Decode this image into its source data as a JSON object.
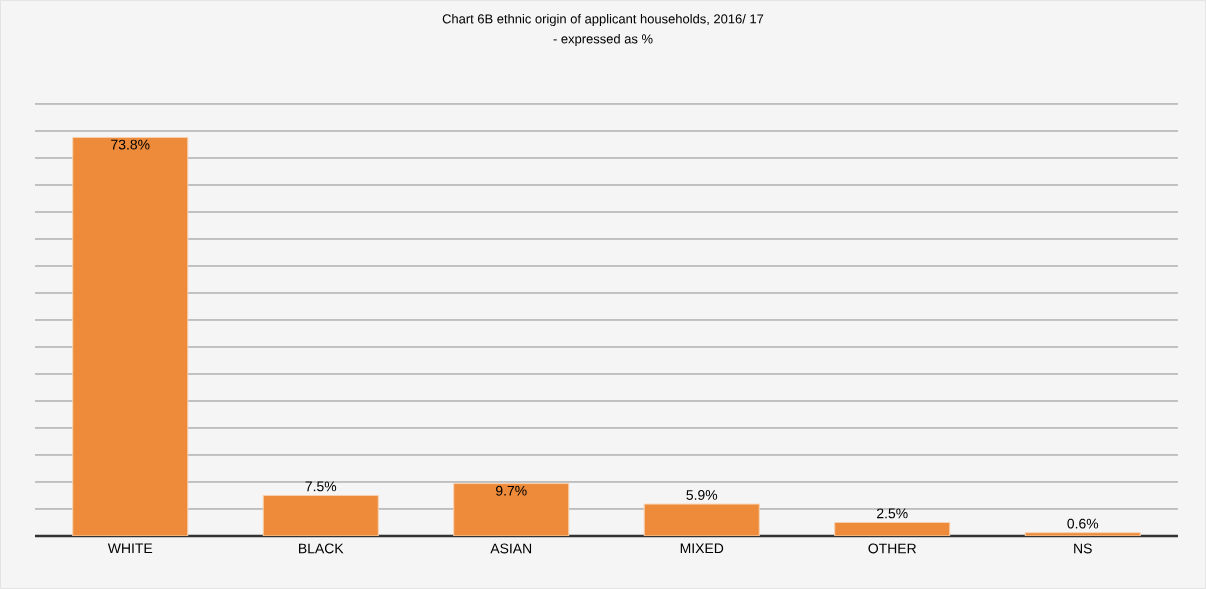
{
  "chart_data": {
    "type": "bar",
    "title": "Chart 6B ethnic origin of applicant households, 2016/ 17",
    "subtitle": "- expressed as %",
    "categories": [
      "WHITE",
      "BLACK",
      "ASIAN",
      "MIXED",
      "OTHER",
      "NS"
    ],
    "values": [
      73.8,
      7.5,
      9.7,
      5.9,
      2.5,
      0.6
    ],
    "value_labels": [
      "73.8%",
      "7.5%",
      "9.7%",
      "5.9%",
      "2.5%",
      "0.6%"
    ],
    "color": "#ed8b3a",
    "ylim": [
      0,
      80
    ],
    "tick_labels": "x",
    "grid": "y"
  }
}
